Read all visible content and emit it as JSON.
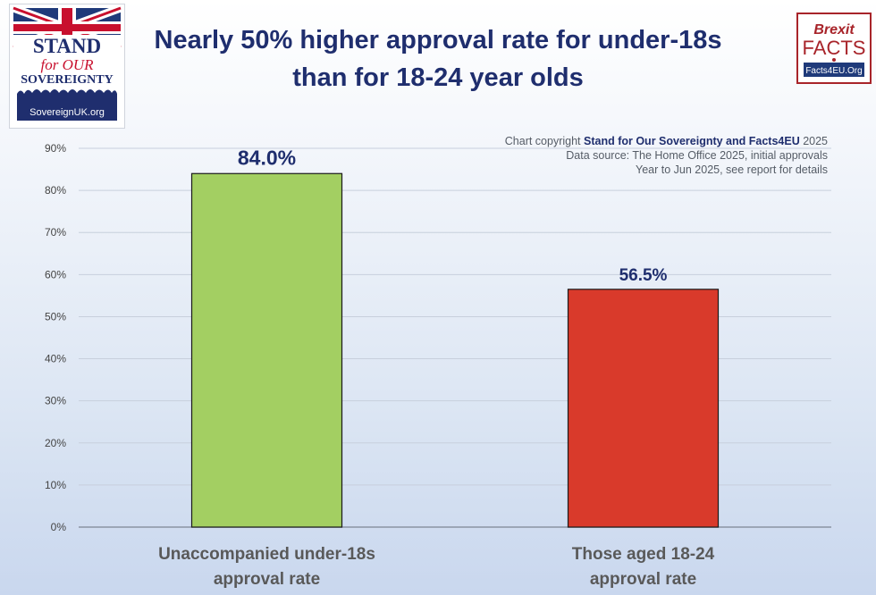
{
  "title_line1": "Nearly 50% higher approval rate for under-18s",
  "title_line2": "than for 18-24 year olds",
  "logo_left": {
    "line1": "STAND",
    "line2": "for OUR",
    "line3": "SOVEREIGNTY",
    "url": "SovereignUK.org"
  },
  "logo_right": {
    "line1": "Brexit",
    "line2": "FACTS",
    "url": "Facts4EU.Org"
  },
  "copyright": {
    "prefix": "Chart copyright ",
    "owner": "Stand for Our Sovereignty and Facts4EU",
    "year": " 2025",
    "source_line1": "Data source: The Home Office 2025, initial approvals",
    "source_line2": "Year to Jun 2025, see report for details"
  },
  "colors": {
    "title": "#1f2e6e",
    "bar_under18": "#a3cf62",
    "bar_18_24": "#d93a2b",
    "brand_red": "#a8242a"
  },
  "chart_data": {
    "type": "bar",
    "title": "Nearly 50% higher approval rate for under-18s than for 18-24 year olds",
    "categories": [
      [
        "Unaccompanied under-18s",
        "approval rate"
      ],
      [
        "Those aged 18-24",
        "approval rate"
      ]
    ],
    "values": [
      84.0,
      56.5
    ],
    "data_labels": [
      "84.0%",
      "56.5%"
    ],
    "bar_colors": [
      "#a3cf62",
      "#d93a2b"
    ],
    "ylim": [
      0,
      90
    ],
    "yticks": [
      0,
      10,
      20,
      30,
      40,
      50,
      60,
      70,
      80,
      90
    ],
    "ytick_labels": [
      "0%",
      "10%",
      "20%",
      "30%",
      "40%",
      "50%",
      "60%",
      "70%",
      "80%",
      "90%"
    ],
    "grid": true,
    "legend": "none"
  }
}
